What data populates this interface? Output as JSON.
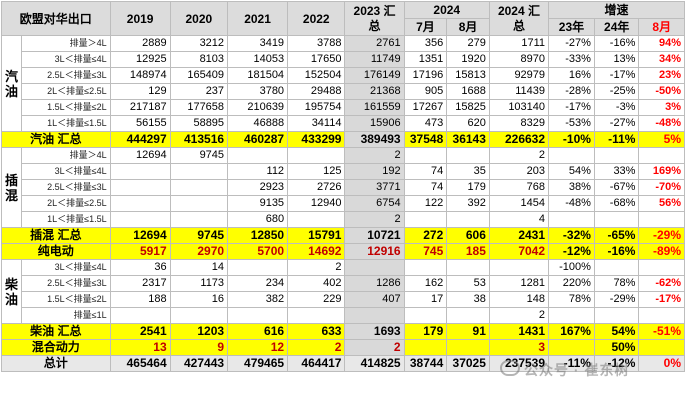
{
  "header": {
    "title": "欧盟对华出口",
    "years": [
      "2019",
      "2020",
      "2021",
      "2022"
    ],
    "y2023": "2023 汇总",
    "y2024": "2024",
    "months": [
      "7月",
      "8月"
    ],
    "y2024tot": "2024 汇总",
    "growth": "增速",
    "growth_cols": [
      "23年",
      "24年",
      "8月"
    ]
  },
  "groups": {
    "gasoline": "汽油",
    "phev": "插混",
    "diesel": "柴油"
  },
  "rows": [
    {
      "sub": "排量＞4L",
      "vals": [
        "2889",
        "3212",
        "3419",
        "3788",
        "2761",
        "356",
        "279",
        "1711"
      ],
      "g": [
        "-27%",
        "-16%",
        "94%"
      ],
      "gred": [
        false,
        false,
        true
      ]
    },
    {
      "sub": "3L＜排量≤4L",
      "vals": [
        "12925",
        "8103",
        "14053",
        "17650",
        "11749",
        "1351",
        "1920",
        "8970"
      ],
      "g": [
        "-33%",
        "13%",
        "34%"
      ],
      "gred": [
        false,
        false,
        true
      ]
    },
    {
      "sub": "2.5L＜排量≤3L",
      "vals": [
        "148974",
        "165409",
        "181504",
        "152504",
        "176149",
        "17196",
        "15813",
        "92979"
      ],
      "g": [
        "16%",
        "-17%",
        "23%"
      ],
      "gred": [
        false,
        false,
        true
      ]
    },
    {
      "sub": "2L＜排量≤2.5L",
      "vals": [
        "129",
        "237",
        "3780",
        "29488",
        "21368",
        "905",
        "1688",
        "11439"
      ],
      "g": [
        "-28%",
        "-25%",
        "-50%"
      ],
      "gred": [
        false,
        false,
        true
      ]
    },
    {
      "sub": "1.5L＜排量≤2L",
      "vals": [
        "217187",
        "177658",
        "210639",
        "195754",
        "161559",
        "17267",
        "15825",
        "103140"
      ],
      "g": [
        "-17%",
        "-3%",
        "3%"
      ],
      "gred": [
        false,
        false,
        true
      ]
    },
    {
      "sub": "1L＜排量≤1.5L",
      "vals": [
        "56155",
        "58895",
        "46888",
        "34114",
        "15906",
        "473",
        "620",
        "8329"
      ],
      "g": [
        "-53%",
        "-27%",
        "-48%"
      ],
      "gred": [
        false,
        false,
        true
      ]
    },
    {
      "total": "汽油 汇总",
      "vals": [
        "444297",
        "413516",
        "460287",
        "433299",
        "389493",
        "37548",
        "36143",
        "226632"
      ],
      "g": [
        "-10%",
        "-11%",
        "5%"
      ],
      "gred": [
        false,
        false,
        true
      ]
    },
    {
      "sub": "排量＞4L",
      "vals": [
        "12694",
        "9745",
        "",
        "",
        "2",
        "",
        "",
        "2"
      ],
      "g": [
        "",
        "",
        ""
      ],
      "gred": [
        false,
        false,
        false
      ]
    },
    {
      "sub": "3L＜排量≤4L",
      "vals": [
        "",
        "",
        "112",
        "125",
        "192",
        "74",
        "35",
        "203"
      ],
      "g": [
        "54%",
        "33%",
        "169%"
      ],
      "gred": [
        false,
        false,
        true
      ]
    },
    {
      "sub": "2.5L＜排量≤3L",
      "vals": [
        "",
        "",
        "2923",
        "2726",
        "3771",
        "74",
        "179",
        "768"
      ],
      "g": [
        "38%",
        "-67%",
        "-70%"
      ],
      "gred": [
        false,
        false,
        true
      ]
    },
    {
      "sub": "2L＜排量≤2.5L",
      "vals": [
        "",
        "",
        "9135",
        "12940",
        "6754",
        "122",
        "392",
        "1454"
      ],
      "g": [
        "-48%",
        "-68%",
        "56%"
      ],
      "gred": [
        false,
        false,
        true
      ]
    },
    {
      "sub": "1L＜排量≤1.5L",
      "vals": [
        "",
        "",
        "680",
        "",
        "2",
        "",
        "",
        "4"
      ],
      "g": [
        "",
        "",
        ""
      ],
      "gred": [
        false,
        false,
        false
      ]
    },
    {
      "total": "插混 汇总",
      "vals": [
        "12694",
        "9745",
        "12850",
        "15791",
        "10721",
        "272",
        "606",
        "2431"
      ],
      "g": [
        "-32%",
        "-65%",
        "-29%"
      ],
      "gred": [
        false,
        false,
        true
      ]
    },
    {
      "total": "纯电动",
      "red": true,
      "vals": [
        "5917",
        "2970",
        "5700",
        "14692",
        "12916",
        "745",
        "185",
        "7042"
      ],
      "g": [
        "-12%",
        "-16%",
        "-89%"
      ],
      "gred": [
        false,
        false,
        true
      ]
    },
    {
      "sub": "3L＜排量≤4L",
      "vals": [
        "36",
        "14",
        "",
        "2",
        "",
        "",
        "",
        ""
      ],
      "g": [
        "-100%",
        "",
        ""
      ],
      "gred": [
        false,
        false,
        false
      ]
    },
    {
      "sub": "2.5L＜排量≤3L",
      "vals": [
        "2317",
        "1173",
        "234",
        "402",
        "1286",
        "162",
        "53",
        "1281"
      ],
      "g": [
        "220%",
        "78%",
        "-62%"
      ],
      "gred": [
        false,
        false,
        true
      ]
    },
    {
      "sub": "1.5L＜排量≤2L",
      "vals": [
        "188",
        "16",
        "382",
        "229",
        "407",
        "17",
        "38",
        "148"
      ],
      "g": [
        "78%",
        "-29%",
        "-17%"
      ],
      "gred": [
        false,
        false,
        true
      ]
    },
    {
      "sub": "排量≤1L",
      "vals": [
        "",
        "",
        "",
        "",
        "",
        "",
        "",
        "2"
      ],
      "g": [
        "",
        "",
        ""
      ],
      "gred": [
        false,
        false,
        false
      ]
    },
    {
      "total": "柴油 汇总",
      "vals": [
        "2541",
        "1203",
        "616",
        "633",
        "1693",
        "179",
        "91",
        "1431"
      ],
      "g": [
        "167%",
        "54%",
        "-51%"
      ],
      "gred": [
        false,
        false,
        true
      ]
    },
    {
      "total": "混合动力",
      "red": true,
      "vals": [
        "13",
        "9",
        "12",
        "2",
        "2",
        "",
        "",
        "3"
      ],
      "g": [
        "",
        "50%",
        ""
      ],
      "gred": [
        false,
        false,
        false
      ]
    },
    {
      "grand": "总计",
      "vals": [
        "465464",
        "427443",
        "479465",
        "464417",
        "414825",
        "38744",
        "37025",
        "237539"
      ],
      "g": [
        "-11%",
        "-12%",
        "0%"
      ],
      "gred": [
        false,
        false,
        true
      ]
    }
  ],
  "watermark": "公众号 · 崔东树",
  "colors": {
    "highlight": "#ffff00",
    "header": "#dcdcdc",
    "shade2023": "#d9d9d9",
    "negative": "#ff0000"
  }
}
